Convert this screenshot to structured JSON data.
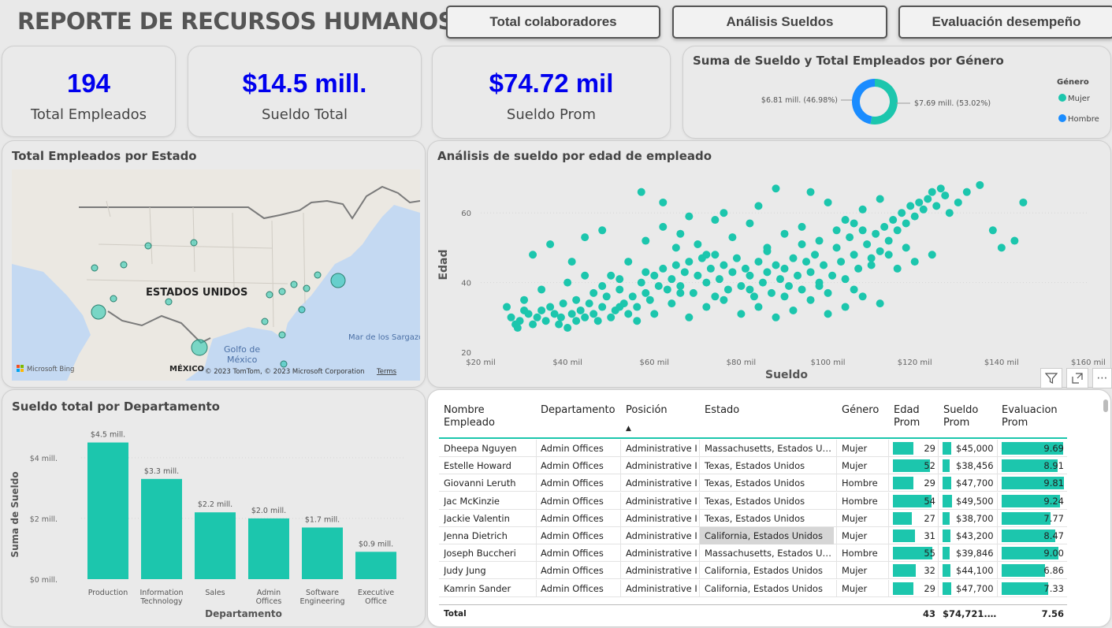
{
  "header": {
    "title": "REPORTE DE RECURSOS HUMANOS",
    "nav": [
      "Total colaboradores",
      "Análisis Sueldos",
      "Evaluación desempeño"
    ]
  },
  "kpis": [
    {
      "value": "194",
      "label": "Total Empleados"
    },
    {
      "value": "$14.5 mill.",
      "label": "Sueldo Total"
    },
    {
      "value": "$74.72 mil",
      "label": "Sueldo Prom"
    }
  ],
  "gender_chart": {
    "title": "Suma de Sueldo y Total Empleados por Género",
    "legend_title": "Género",
    "left_label": "$6.81 mill. (46.98%)",
    "right_label": "$7.69 mill. (53.02%)",
    "chart_data": {
      "type": "pie",
      "categories": [
        "Mujer",
        "Hombre"
      ],
      "values": [
        7.69,
        6.81
      ],
      "colors": [
        "#1cc6ad",
        "#1a8cff"
      ]
    }
  },
  "map_card": {
    "title": "Total Empleados por Estado",
    "country_label": "ESTADOS UNIDOS",
    "gulf_label": "Golfo de México",
    "sea_label": "Mar de los Sargazo",
    "mexico_label": "MÉXICO",
    "bing_label": "Microsoft Bing",
    "copyright": "© 2023 TomTom, © 2023 Microsoft Corporation",
    "terms": "Terms"
  },
  "scatter_card": {
    "title": "Análisis de sueldo por edad de empleado",
    "chart_data": {
      "type": "scatter",
      "xlabel": "Sueldo",
      "ylabel": "Edad",
      "xlim": [
        20000,
        160000
      ],
      "ylim": [
        20,
        70
      ],
      "x_ticks": [
        "$20 mil",
        "$40 mil",
        "$60 mil",
        "$80 mil",
        "$100 mil",
        "$120 mil",
        "$140 mil",
        "$160 mil"
      ],
      "y_ticks": [
        "20",
        "40",
        "60"
      ],
      "color": "#1cc6ad",
      "points": [
        [
          26000,
          33
        ],
        [
          27000,
          30
        ],
        [
          28000,
          28
        ],
        [
          28500,
          27
        ],
        [
          29000,
          29
        ],
        [
          30000,
          32
        ],
        [
          31000,
          31
        ],
        [
          32000,
          28
        ],
        [
          33000,
          30
        ],
        [
          34000,
          32
        ],
        [
          35000,
          29
        ],
        [
          36000,
          33
        ],
        [
          37000,
          31
        ],
        [
          38000,
          28
        ],
        [
          38500,
          30
        ],
        [
          39000,
          34
        ],
        [
          40000,
          27
        ],
        [
          41000,
          31
        ],
        [
          42000,
          35
        ],
        [
          42000,
          29
        ],
        [
          43000,
          32
        ],
        [
          44000,
          30
        ],
        [
          45000,
          34
        ],
        [
          46000,
          31
        ],
        [
          47000,
          29
        ],
        [
          48000,
          33
        ],
        [
          49000,
          36
        ],
        [
          50000,
          30
        ],
        [
          51000,
          32
        ],
        [
          52000,
          38
        ],
        [
          53000,
          34
        ],
        [
          54000,
          31
        ],
        [
          55000,
          36
        ],
        [
          56000,
          33
        ],
        [
          57000,
          40
        ],
        [
          58000,
          37
        ],
        [
          59000,
          35
        ],
        [
          60000,
          42
        ],
        [
          61000,
          39
        ],
        [
          62000,
          44
        ],
        [
          63000,
          38
        ],
        [
          64000,
          41
        ],
        [
          65000,
          45
        ],
        [
          66000,
          39
        ],
        [
          67000,
          43
        ],
        [
          68000,
          46
        ],
        [
          69000,
          37
        ],
        [
          70000,
          42
        ],
        [
          71000,
          47
        ],
        [
          72000,
          40
        ],
        [
          73000,
          44
        ],
        [
          74000,
          48
        ],
        [
          75000,
          41
        ],
        [
          76000,
          45
        ],
        [
          77000,
          38
        ],
        [
          78000,
          43
        ],
        [
          79000,
          47
        ],
        [
          80000,
          39
        ],
        [
          81000,
          44
        ],
        [
          82000,
          42
        ],
        [
          83000,
          36
        ],
        [
          84000,
          46
        ],
        [
          85000,
          40
        ],
        [
          86000,
          43
        ],
        [
          87000,
          37
        ],
        [
          88000,
          45
        ],
        [
          89000,
          41
        ],
        [
          90000,
          44
        ],
        [
          91000,
          39
        ],
        [
          92000,
          47
        ],
        [
          93000,
          42
        ],
        [
          94000,
          38
        ],
        [
          95000,
          46
        ],
        [
          96000,
          43
        ],
        [
          97000,
          48
        ],
        [
          98000,
          40
        ],
        [
          99000,
          45
        ],
        [
          100000,
          37
        ],
        [
          101000,
          42
        ],
        [
          102000,
          50
        ],
        [
          103000,
          46
        ],
        [
          104000,
          41
        ],
        [
          105000,
          53
        ],
        [
          106000,
          48
        ],
        [
          107000,
          44
        ],
        [
          108000,
          55
        ],
        [
          109000,
          51
        ],
        [
          110000,
          47
        ],
        [
          111000,
          54
        ],
        [
          112000,
          49
        ],
        [
          113000,
          56
        ],
        [
          114000,
          52
        ],
        [
          115000,
          58
        ],
        [
          116000,
          55
        ],
        [
          117000,
          60
        ],
        [
          118000,
          57
        ],
        [
          119000,
          62
        ],
        [
          120000,
          59
        ],
        [
          121000,
          63
        ],
        [
          122000,
          61
        ],
        [
          123000,
          64
        ],
        [
          124000,
          66
        ],
        [
          125000,
          62
        ],
        [
          126000,
          67
        ],
        [
          127000,
          65
        ],
        [
          128000,
          60
        ],
        [
          130000,
          63
        ],
        [
          132000,
          66
        ],
        [
          135000,
          68
        ],
        [
          138000,
          55
        ],
        [
          140000,
          50
        ],
        [
          143000,
          52
        ],
        [
          145000,
          63
        ],
        [
          32000,
          48
        ],
        [
          36000,
          51
        ],
        [
          41000,
          46
        ],
        [
          44000,
          53
        ],
        [
          48000,
          55
        ],
        [
          50000,
          42
        ],
        [
          54000,
          46
        ],
        [
          58000,
          52
        ],
        [
          62000,
          56
        ],
        [
          66000,
          54
        ],
        [
          70000,
          51
        ],
        [
          74000,
          58
        ],
        [
          78000,
          53
        ],
        [
          82000,
          57
        ],
        [
          86000,
          50
        ],
        [
          90000,
          54
        ],
        [
          94000,
          56
        ],
        [
          98000,
          52
        ],
        [
          102000,
          55
        ],
        [
          106000,
          57
        ],
        [
          110000,
          45
        ],
        [
          114000,
          48
        ],
        [
          118000,
          50
        ],
        [
          57000,
          66
        ],
        [
          62000,
          63
        ],
        [
          68000,
          59
        ],
        [
          76000,
          60
        ],
        [
          84000,
          62
        ],
        [
          88000,
          67
        ],
        [
          96000,
          66
        ],
        [
          100000,
          63
        ],
        [
          104000,
          58
        ],
        [
          108000,
          61
        ],
        [
          112000,
          64
        ],
        [
          116000,
          44
        ],
        [
          120000,
          46
        ],
        [
          124000,
          48
        ],
        [
          46000,
          37
        ],
        [
          52000,
          33
        ],
        [
          56000,
          29
        ],
        [
          60000,
          31
        ],
        [
          64000,
          34
        ],
        [
          68000,
          30
        ],
        [
          72000,
          33
        ],
        [
          76000,
          35
        ],
        [
          80000,
          31
        ],
        [
          84000,
          33
        ],
        [
          88000,
          30
        ],
        [
          92000,
          32
        ],
        [
          96000,
          35
        ],
        [
          100000,
          31
        ],
        [
          104000,
          33
        ],
        [
          108000,
          36
        ],
        [
          112000,
          34
        ],
        [
          65000,
          50
        ],
        [
          72000,
          48
        ],
        [
          86000,
          49
        ],
        [
          94000,
          51
        ],
        [
          30000,
          35
        ],
        [
          34000,
          38
        ],
        [
          40000,
          40
        ],
        [
          44000,
          42
        ],
        [
          48000,
          39
        ],
        [
          52000,
          41
        ],
        [
          58000,
          43
        ],
        [
          66000,
          37
        ],
        [
          74000,
          36
        ],
        [
          82000,
          38
        ],
        [
          90000,
          36
        ],
        [
          98000,
          39
        ],
        [
          106000,
          38
        ]
      ]
    }
  },
  "dept_card": {
    "title": "Sueldo total por Departamento",
    "chart_data": {
      "type": "bar",
      "xlabel": "Departamento",
      "ylabel": "Suma de Sueldo",
      "categories": [
        "Production",
        "Information Technology",
        "Sales",
        "Admin Offices",
        "Software Engineering",
        "Executive Office"
      ],
      "category_lines": [
        [
          "Production"
        ],
        [
          "Information",
          "Technology"
        ],
        [
          "Sales"
        ],
        [
          "Admin",
          "Offices"
        ],
        [
          "Software",
          "Engineering"
        ],
        [
          "Executive",
          "Office"
        ]
      ],
      "values": [
        4.5,
        3.3,
        2.2,
        2.0,
        1.7,
        0.9
      ],
      "value_labels": [
        "$4.5 mill.",
        "$3.3 mill.",
        "$2.2 mill.",
        "$2.0 mill.",
        "$1.7 mill.",
        "$0.9 mill."
      ],
      "y_ticks": [
        {
          "v": 0,
          "label": "$0 mill."
        },
        {
          "v": 2,
          "label": "$2 mill."
        },
        {
          "v": 4,
          "label": "$4 mill."
        }
      ],
      "ylim": [
        0,
        4.8
      ],
      "color": "#1cc6ad"
    }
  },
  "table": {
    "headers": [
      "Nombre\nEmpleado",
      "Departamento",
      "Posición",
      "Estado",
      "Género",
      "Edad\nProm",
      "Sueldo\nProm",
      "Evaluacion\nProm"
    ],
    "sort_indicator": "▲",
    "rows": [
      {
        "name": "Dheepa Nguyen",
        "dept": "Admin Offices",
        "pos": "Administrative I",
        "state": "Massachusetts, Estados Uni...",
        "gender": "Mujer",
        "age": 29,
        "salary": "$45,000",
        "salary_v": 45000,
        "eval": "9.69",
        "eval_v": 9.69
      },
      {
        "name": "Estelle Howard",
        "dept": "Admin Offices",
        "pos": "Administrative I",
        "state": "Texas, Estados Unidos",
        "gender": "Mujer",
        "age": 52,
        "salary": "$38,456",
        "salary_v": 38456,
        "eval": "8.91",
        "eval_v": 8.91
      },
      {
        "name": "Giovanni Leruth",
        "dept": "Admin Offices",
        "pos": "Administrative I",
        "state": "Texas, Estados Unidos",
        "gender": "Hombre",
        "age": 29,
        "salary": "$47,700",
        "salary_v": 47700,
        "eval": "9.81",
        "eval_v": 9.81
      },
      {
        "name": "Jac McKinzie",
        "dept": "Admin Offices",
        "pos": "Administrative I",
        "state": "Texas, Estados Unidos",
        "gender": "Hombre",
        "age": 54,
        "salary": "$49,500",
        "salary_v": 49500,
        "eval": "9.24",
        "eval_v": 9.24
      },
      {
        "name": "Jackie Valentin",
        "dept": "Admin Offices",
        "pos": "Administrative I",
        "state": "Texas, Estados Unidos",
        "gender": "Mujer",
        "age": 27,
        "salary": "$38,700",
        "salary_v": 38700,
        "eval": "7.77",
        "eval_v": 7.77
      },
      {
        "name": "Jenna Dietrich",
        "dept": "Admin Offices",
        "pos": "Administrative I",
        "state": "California, Estados Unidos",
        "gender": "Mujer",
        "age": 31,
        "salary": "$43,200",
        "salary_v": 43200,
        "eval": "8.47",
        "eval_v": 8.47,
        "highlight": true
      },
      {
        "name": "Joseph Buccheri",
        "dept": "Admin Offices",
        "pos": "Administrative I",
        "state": "Massachusetts, Estados Uni...",
        "gender": "Hombre",
        "age": 55,
        "salary": "$39,846",
        "salary_v": 39846,
        "eval": "9.00",
        "eval_v": 9.0
      },
      {
        "name": "Judy Jung",
        "dept": "Admin Offices",
        "pos": "Administrative I",
        "state": "California, Estados Unidos",
        "gender": "Mujer",
        "age": 32,
        "salary": "$44,100",
        "salary_v": 44100,
        "eval": "6.86",
        "eval_v": 6.86
      },
      {
        "name": "Kamrin Sander",
        "dept": "Admin Offices",
        "pos": "Administrative I",
        "state": "California, Estados Unidos",
        "gender": "Mujer",
        "age": 29,
        "salary": "$47,700",
        "salary_v": 47700,
        "eval": "7.33",
        "eval_v": 7.33
      }
    ],
    "total": {
      "label": "Total",
      "age": "43",
      "salary": "$74,721.5...",
      "eval": "7.56"
    }
  }
}
